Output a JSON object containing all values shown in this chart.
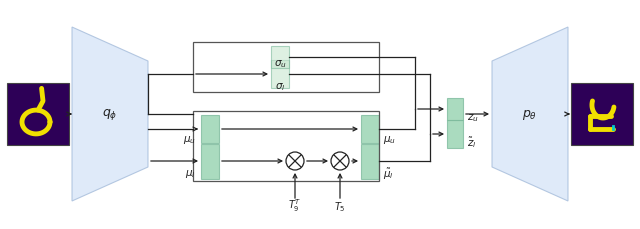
{
  "fig_width": 6.4,
  "fig_height": 2.3,
  "dpi": 100,
  "bg_color": "#ffffff",
  "trapezoid_color": "#d5e4f7",
  "trapezoid_edge": "#a0b8d8",
  "box_color_light": "#c8e6d0",
  "box_color_dark": "#8ecfaa",
  "box_edge": "#7ab89a",
  "arrow_color": "#222222",
  "text_color": "#222222",
  "circle_edge": "#222222",
  "digit_bg": "#2d0057",
  "digit_color_yellow": "#f0e000",
  "digit_color_cyan": "#00cccc",
  "label_q": "$q_\\phi$",
  "label_p": "$p_\\theta$",
  "label_mu_l": "$\\mu_l$",
  "label_mu_u": "$\\mu_u$",
  "label_mu_l_tilde": "$\\tilde{\\mu}_l$",
  "label_mu_u_out": "$\\mu_u$",
  "label_sigma_l": "$\\sigma_l$",
  "label_sigma_u": "$\\sigma_u$",
  "label_z_l_tilde": "$\\tilde{z}_l$",
  "label_z_u": "$z_u$",
  "label_T9T": "$T_9^T$",
  "label_T5": "$T_5$"
}
